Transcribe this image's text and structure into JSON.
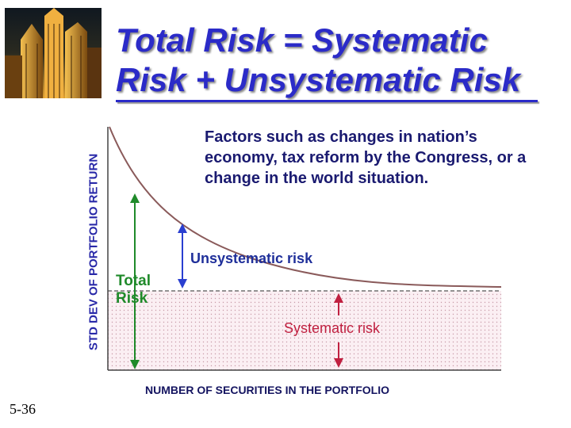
{
  "title": {
    "line1": "Total Risk = Systematic",
    "line2": "Risk + Unsystematic Risk",
    "color": "#2b2bc8"
  },
  "thumbnail": {
    "icon": "city-skyline-icon"
  },
  "axes": {
    "y_label": "STD DEV OF PORTFOLIO RETURN",
    "x_label": "NUMBER OF SECURITIES IN THE PORTFOLIO"
  },
  "annotation": "Factors such as changes in nation’s economy, tax reform by the Congress, or a change in the world situation.",
  "labels": {
    "unsystematic": "Unsystematic risk",
    "total_line1": "Total",
    "total_line2": "Risk",
    "systematic": "Systematic risk"
  },
  "colors": {
    "unsystematic_arrow": "#2a3fd0",
    "total_arrow": "#1f8a2a",
    "systematic_arrow": "#c02040",
    "curve": "#8a5a5a",
    "systematic_fill": "#f7e4ea",
    "total_text": "#1f8a2a",
    "unsystematic_text": "#1f2f9a",
    "systematic_text": "#c02040"
  },
  "slide_number": "5-36"
}
